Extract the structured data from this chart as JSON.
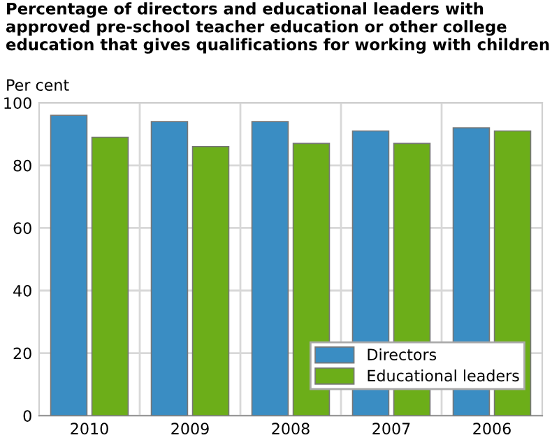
{
  "chart_data": {
    "type": "bar",
    "title": "Percentage of directors and educational leaders with approved pre-school teacher education or other college education that gives qualifications for working with children",
    "ylabel": "Per cent",
    "categories": [
      "2010",
      "2009",
      "2008",
      "2007",
      "2006"
    ],
    "series": [
      {
        "name": "Directors",
        "color": "#3a8dc3",
        "values": [
          96,
          94,
          94,
          91,
          92
        ]
      },
      {
        "name": "Educational leaders",
        "color": "#6cae19",
        "values": [
          89,
          86,
          87,
          87,
          91
        ]
      }
    ],
    "ylim": [
      0,
      100
    ],
    "yticks": [
      0,
      20,
      40,
      60,
      80,
      100
    ],
    "grid": true,
    "legend": "bottom right"
  }
}
